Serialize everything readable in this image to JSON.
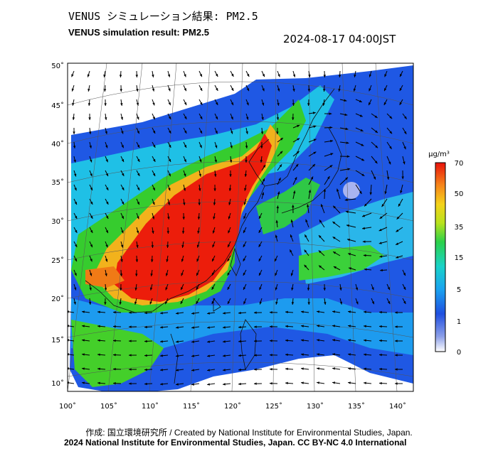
{
  "header": {
    "title_jp": "VENUS シミュレーション結果: PM2.5",
    "title_en": "VENUS simulation result: PM2.5",
    "timestamp": "2024-08-17 04:00JST"
  },
  "map": {
    "lon_ticks": [
      "100˚",
      "105˚",
      "110˚",
      "115˚",
      "120˚",
      "125˚",
      "130˚",
      "135˚",
      "140˚"
    ],
    "lat_ticks": [
      "50˚",
      "45˚",
      "40˚",
      "35˚",
      "30˚",
      "25˚",
      "20˚",
      "15˚",
      "10˚"
    ],
    "lon_range": [
      100,
      142
    ],
    "lat_range": [
      9,
      51
    ],
    "variable": "PM2.5",
    "colors": {
      "very_high": "#ee1a0b",
      "high": "#f6a01c",
      "mid": "#3ccd2a",
      "low": "#1ad0d8",
      "background": "#1a4fd6",
      "none": "#ffffff"
    }
  },
  "colorbar": {
    "unit": "μg/m³",
    "ticks": [
      "70",
      "50",
      "35",
      "15",
      "5",
      "1",
      "0"
    ]
  },
  "footer": {
    "credit": "作成: 国立環境研究所 / Created by National Institute for Environmental Studies, Japan.",
    "copyright": "2024 National Institute for Environmental Studies, Japan. CC BY-NC 4.0 International"
  }
}
